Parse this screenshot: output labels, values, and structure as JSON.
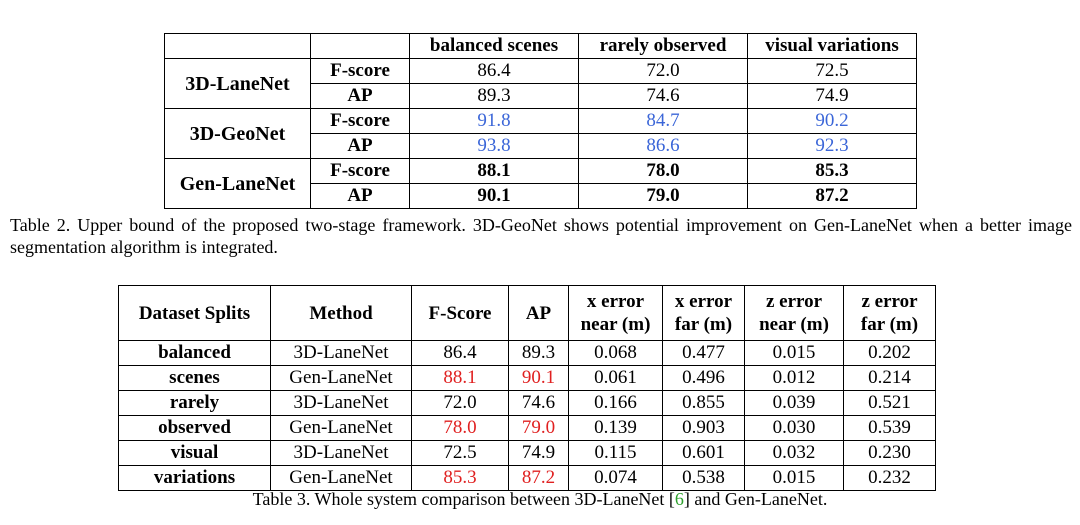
{
  "table2": {
    "headers": [
      "",
      "",
      "balanced scenes",
      "rarely observed",
      "visual variations"
    ],
    "rows": [
      {
        "method": "3D-LaneNet",
        "metrics": [
          {
            "name": "F-score",
            "values": [
              "86.4",
              "72.0",
              "72.5"
            ]
          },
          {
            "name": "AP",
            "values": [
              "89.3",
              "74.6",
              "74.9"
            ]
          }
        ]
      },
      {
        "method": "3D-GeoNet",
        "metrics": [
          {
            "name": "F-score",
            "values": [
              "91.8",
              "84.7",
              "90.2"
            ]
          },
          {
            "name": "AP",
            "values": [
              "93.8",
              "86.6",
              "92.3"
            ]
          }
        ]
      },
      {
        "method": "Gen-LaneNet",
        "metrics": [
          {
            "name": "F-score",
            "values": [
              "88.1",
              "78.0",
              "85.3"
            ]
          },
          {
            "name": "AP",
            "values": [
              "90.1",
              "79.0",
              "87.2"
            ]
          }
        ]
      }
    ],
    "caption": "Table 2. Upper bound of the proposed two-stage framework. 3D-GeoNet shows potential improvement on Gen-LaneNet when a better image segmentation algorithm is integrated.",
    "highlight_color": "#3b66d8"
  },
  "table3": {
    "headers": [
      [
        "Dataset Splits"
      ],
      [
        "Method"
      ],
      [
        "F-Score"
      ],
      [
        "AP"
      ],
      [
        "x error",
        "near (m)"
      ],
      [
        "x error",
        "far (m)"
      ],
      [
        "z error",
        "near (m)"
      ],
      [
        "z error",
        "far (m)"
      ]
    ],
    "groups": [
      {
        "split": [
          "balanced",
          "scenes"
        ],
        "rows": [
          {
            "method": "3D-LaneNet",
            "values": [
              "86.4",
              "89.3",
              "0.068",
              "0.477",
              "0.015",
              "0.202"
            ]
          },
          {
            "method": "Gen-LaneNet",
            "values": [
              "88.1",
              "90.1",
              "0.061",
              "0.496",
              "0.012",
              "0.214"
            ]
          }
        ]
      },
      {
        "split": [
          "rarely",
          "observed"
        ],
        "rows": [
          {
            "method": "3D-LaneNet",
            "values": [
              "72.0",
              "74.6",
              "0.166",
              "0.855",
              "0.039",
              "0.521"
            ]
          },
          {
            "method": "Gen-LaneNet",
            "values": [
              "78.0",
              "79.0",
              "0.139",
              "0.903",
              "0.030",
              "0.539"
            ]
          }
        ]
      },
      {
        "split": [
          "visual",
          "variations"
        ],
        "rows": [
          {
            "method": "3D-LaneNet",
            "values": [
              "72.5",
              "74.9",
              "0.115",
              "0.601",
              "0.032",
              "0.230"
            ]
          },
          {
            "method": "Gen-LaneNet",
            "values": [
              "85.3",
              "87.2",
              "0.074",
              "0.538",
              "0.015",
              "0.232"
            ]
          }
        ]
      }
    ],
    "caption_before": "Table 3. Whole system comparison between 3D-LaneNet [",
    "citation": "6",
    "caption_after": "] and Gen-LaneNet.",
    "highlight_color": "#e02020"
  }
}
